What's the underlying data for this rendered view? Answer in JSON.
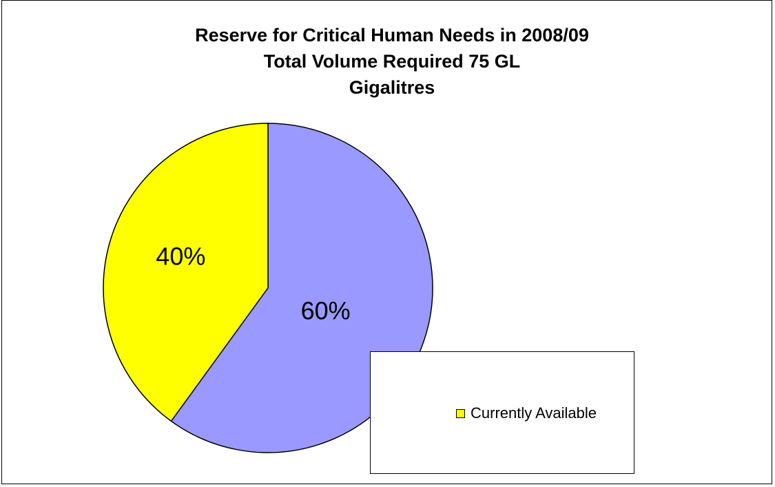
{
  "chart_data": {
    "type": "pie",
    "title": [
      "Reserve for Critical Human Needs in 2008/09",
      "Total Volume Required 75 GL",
      "Gigalitres"
    ],
    "slices": [
      {
        "label": "",
        "value": 60,
        "display": "60%",
        "color": "#9999FF"
      },
      {
        "label": "Currently Available",
        "value": 40,
        "display": "40%",
        "color": "#FFFF00"
      }
    ],
    "legend": {
      "placement": "bottom-right",
      "entries": [
        {
          "label": "Currently Available",
          "color": "#FFFF00"
        }
      ]
    }
  }
}
